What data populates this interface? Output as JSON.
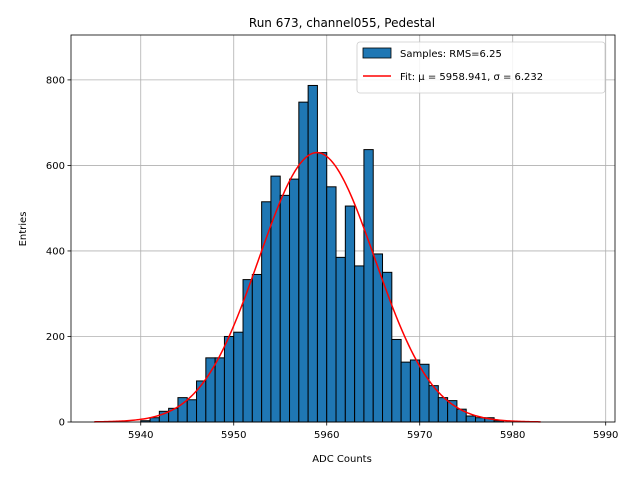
{
  "chart_data": {
    "type": "bar",
    "title": "Run 673, channel055, Pedestal",
    "xlabel": "ADC Counts",
    "ylabel": "Entries",
    "xlim": [
      5932.5,
      5991
    ],
    "ylim": [
      0,
      905
    ],
    "xticks": [
      5940,
      5950,
      5960,
      5970,
      5980,
      5990
    ],
    "yticks": [
      0,
      200,
      400,
      600,
      800
    ],
    "grid": true,
    "legend_position": "top-right",
    "bin_width": 1,
    "colors": {
      "bars": "#1f77b4",
      "fit": "#ff0000"
    },
    "series": [
      {
        "name": "Samples: RMS=6.25",
        "type": "histogram",
        "bin_left_edges": [
          5940,
          5941,
          5942,
          5943,
          5944,
          5945,
          5946,
          5947,
          5948,
          5949,
          5950,
          5951,
          5952,
          5953,
          5954,
          5955,
          5956,
          5957,
          5958,
          5959,
          5960,
          5961,
          5962,
          5963,
          5964,
          5965,
          5966,
          5967,
          5968,
          5969,
          5970,
          5971,
          5972,
          5973,
          5974,
          5975,
          5976,
          5977,
          5978
        ],
        "values": [
          3,
          10,
          25,
          32,
          57,
          52,
          96,
          150,
          150,
          200,
          210,
          333,
          345,
          515,
          575,
          530,
          568,
          748,
          787,
          630,
          550,
          385,
          505,
          365,
          637,
          393,
          350,
          193,
          140,
          145,
          135,
          85,
          57,
          50,
          30,
          14,
          10,
          10,
          3
        ]
      },
      {
        "name": "Fit: μ = 5958.941, σ = 6.232",
        "type": "gaussian",
        "mu": 5958.941,
        "sigma": 6.232,
        "amplitude": 630,
        "x_range": [
          5935,
          5983
        ]
      }
    ]
  }
}
